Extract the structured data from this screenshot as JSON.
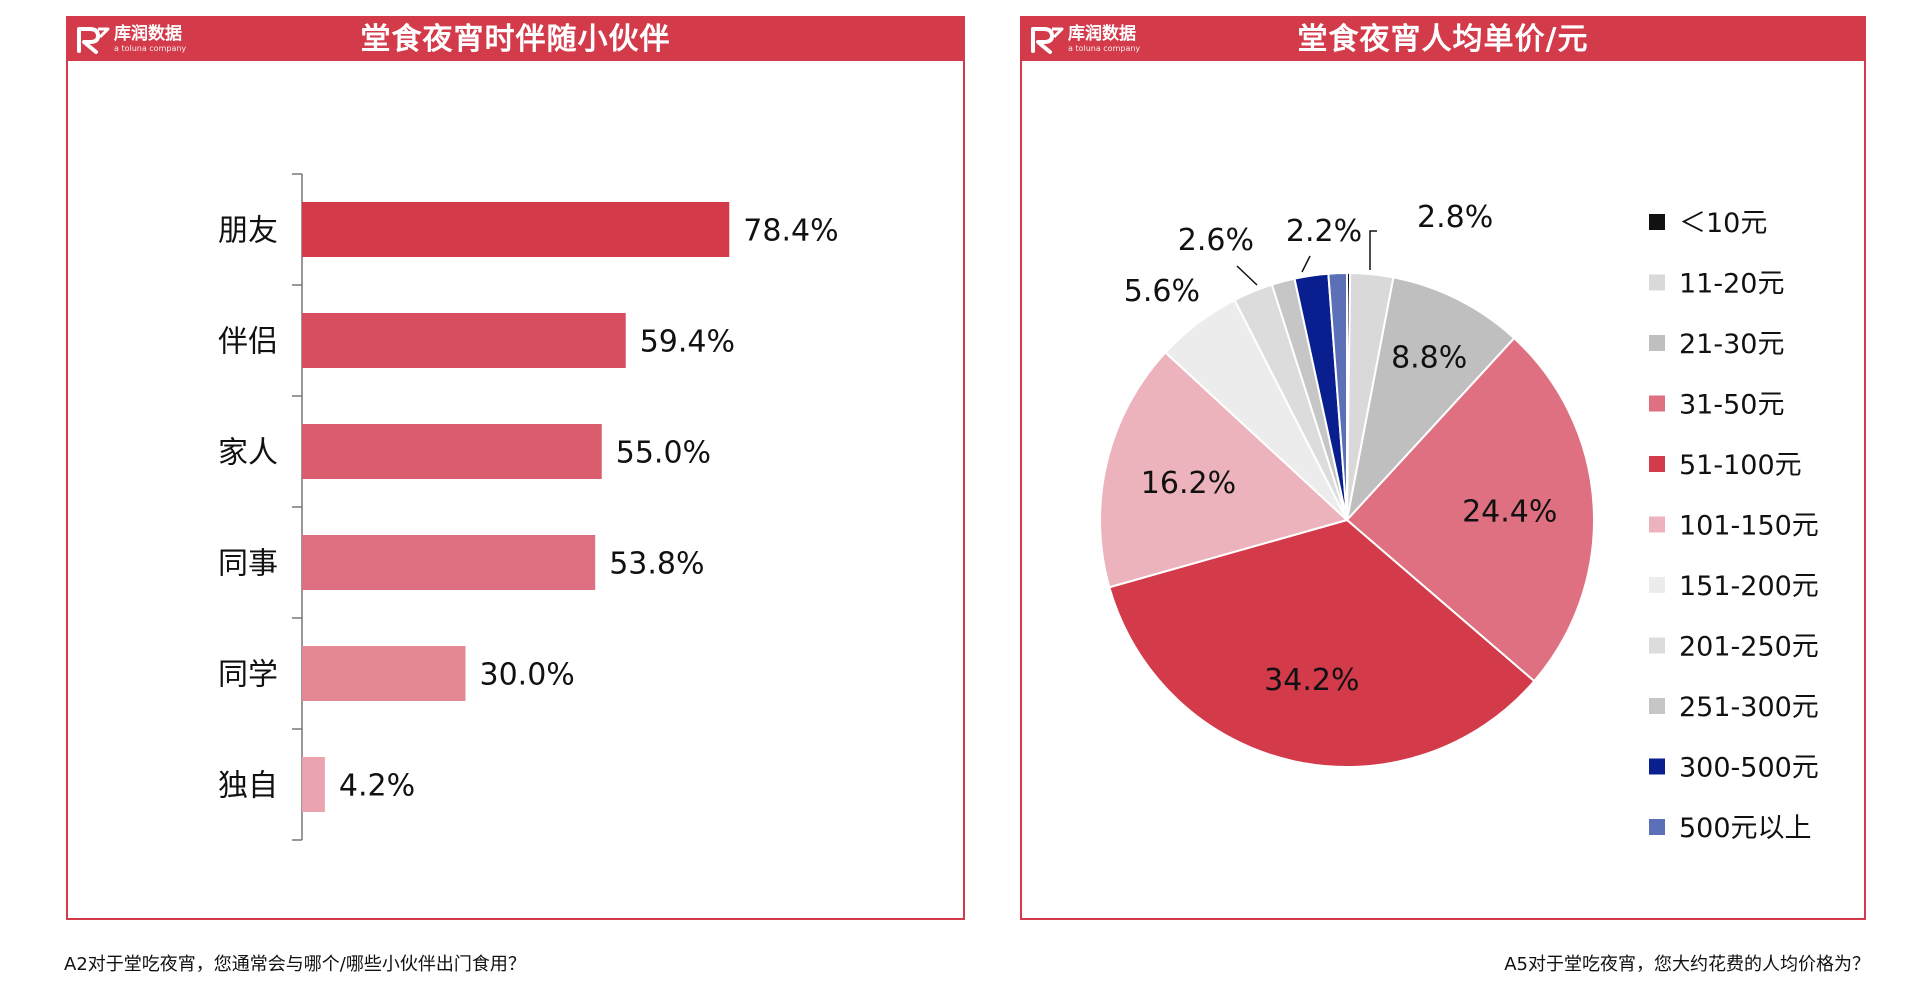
{
  "colors": {
    "header": "#d33a4a",
    "border": "#d33a4a",
    "bar_gradient": [
      "#d33a4a",
      "#d84d5f",
      "#db5c6c",
      "#de7081",
      "#e48895",
      "#eba4af"
    ]
  },
  "logo": {
    "name": "库润数据",
    "sub": "a toluna company"
  },
  "left_panel": {
    "title": "堂食夜宵时伴随小伙伴"
  },
  "right_panel": {
    "title": "堂食夜宵人均单价/元"
  },
  "footnotes": {
    "left": "A2对于堂吃夜宵，您通常会与哪个/哪些小伙伴出门食用？",
    "right": "A5对于堂吃夜宵，您大约花费的人均价格为？"
  },
  "chart_data": [
    {
      "type": "bar",
      "orientation": "horizontal",
      "categories": [
        "朋友",
        "伴侣",
        "家人",
        "同事",
        "同学",
        "独自"
      ],
      "values": [
        78.4,
        59.4,
        55.0,
        53.8,
        30.0,
        4.2
      ],
      "value_labels": [
        "78.4%",
        "59.4%",
        "55.0%",
        "53.8%",
        "30.0%",
        "4.2%"
      ],
      "unit": "%",
      "xlim": [
        0,
        100
      ],
      "grid": false,
      "legend": "none"
    },
    {
      "type": "pie",
      "labels": [
        "＜10元",
        "11-20元",
        "21-30元",
        "31-50元",
        "51-100元",
        "101-150元",
        "151-200元",
        "201-250元",
        "251-300元",
        "300-500元",
        "500元以上"
      ],
      "values": [
        0.2,
        2.8,
        8.8,
        24.4,
        34.2,
        16.2,
        5.6,
        2.6,
        1.5,
        2.2,
        1.2
      ],
      "value_labels": [
        "",
        "2.8%",
        "8.8%",
        "24.4%",
        "34.2%",
        "16.2%",
        "5.6%",
        "2.6%",
        "",
        "2.2%",
        ""
      ],
      "colors": [
        "#111111",
        "#d9d9d9",
        "#bfbfbf",
        "#de7081",
        "#d33a4a",
        "#edb3bd",
        "#ececec",
        "#dcdcdc",
        "#c6c6c6",
        "#0a1f8f",
        "#5b70b6"
      ],
      "legend": "right"
    }
  ]
}
